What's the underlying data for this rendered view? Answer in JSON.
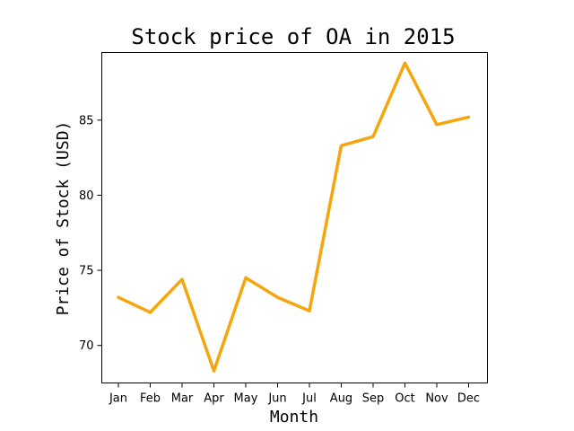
{
  "chart_data": {
    "type": "line",
    "title": "Stock price of OA in 2015",
    "xlabel": "Month",
    "ylabel": "Price of Stock (USD)",
    "categories": [
      "Jan",
      "Feb",
      "Mar",
      "Apr",
      "May",
      "Jun",
      "Jul",
      "Aug",
      "Sep",
      "Oct",
      "Nov",
      "Dec"
    ],
    "series": [
      {
        "values": [
          73.2,
          72.2,
          74.4,
          68.3,
          74.5,
          73.2,
          72.3,
          83.3,
          83.9,
          88.8,
          84.7,
          85.2
        ],
        "color": "#f5a60e"
      }
    ],
    "yticks": [
      70,
      75,
      80,
      85
    ],
    "ylim": [
      67.5,
      89.5
    ],
    "grid": false,
    "legend": "none"
  }
}
